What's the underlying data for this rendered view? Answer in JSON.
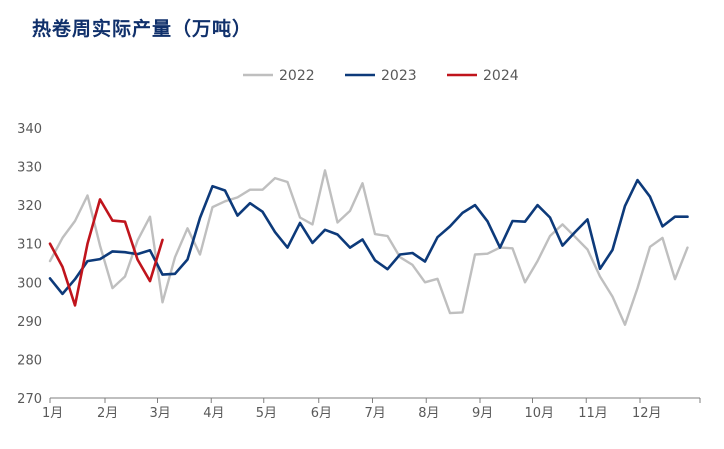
{
  "chart_data": {
    "type": "line",
    "title": "热卷周实际产量（万吨）",
    "ylim": [
      270,
      340
    ],
    "yticks": [
      270,
      280,
      290,
      300,
      310,
      320,
      330,
      340
    ],
    "xlim": [
      1,
      53
    ],
    "xticks": [
      {
        "label": "1月",
        "week": 1
      },
      {
        "label": "2月",
        "week": 5.4
      },
      {
        "label": "3月",
        "week": 9.6
      },
      {
        "label": "4月",
        "week": 13.9
      },
      {
        "label": "5月",
        "week": 18.1
      },
      {
        "label": "6月",
        "week": 22.5
      },
      {
        "label": "7月",
        "week": 26.8
      },
      {
        "label": "8月",
        "week": 31.1
      },
      {
        "label": "9月",
        "week": 35.4
      },
      {
        "label": "10月",
        "week": 39.6
      },
      {
        "label": "11月",
        "week": 43.9
      },
      {
        "label": "12月",
        "week": 48.2
      }
    ],
    "grid": false,
    "legend_position": "top-center",
    "series": [
      {
        "name": "2022",
        "color": "#bfbfbf",
        "values": [
          305.5,
          311.5,
          315.9,
          322.5,
          309.5,
          298.5,
          301.5,
          310.8,
          317.0,
          294.8,
          306.5,
          314.0,
          307.2,
          319.5,
          321.0,
          322.0,
          324.0,
          324.0,
          327.0,
          326.0,
          316.8,
          315.0,
          329.0,
          315.5,
          318.5,
          325.7,
          312.5,
          312.0,
          306.5,
          304.5,
          300.0,
          300.9,
          292.0,
          292.2,
          307.2,
          307.4,
          309.0,
          308.8,
          300.0,
          305.5,
          312.0,
          315.0,
          311.8,
          308.5,
          301.5,
          296.3,
          289.0,
          298.5,
          309.2,
          311.5,
          300.8,
          309.0
        ]
      },
      {
        "name": "2023",
        "color": "#0d3a7a",
        "values": [
          301.0,
          297.0,
          300.8,
          305.5,
          306.0,
          308.0,
          307.8,
          307.3,
          308.3,
          302.0,
          302.2,
          305.9,
          316.7,
          324.9,
          323.8,
          317.3,
          320.5,
          318.3,
          313.0,
          309.0,
          315.4,
          310.2,
          313.6,
          312.4,
          309.0,
          311.1,
          305.7,
          303.4,
          307.2,
          307.6,
          305.4,
          311.7,
          314.5,
          318.0,
          320.0,
          315.8,
          309.0,
          315.9,
          315.7,
          320.0,
          316.8,
          309.5,
          313.0,
          316.3,
          303.5,
          308.4,
          319.8,
          326.5,
          322.2,
          314.5,
          317.0,
          317.0
        ]
      },
      {
        "name": "2024",
        "color": "#c0141c",
        "values": [
          310.0,
          304.0,
          294.0,
          310.0,
          321.5,
          316.0,
          315.7,
          305.9,
          300.3,
          311.0
        ]
      }
    ]
  }
}
